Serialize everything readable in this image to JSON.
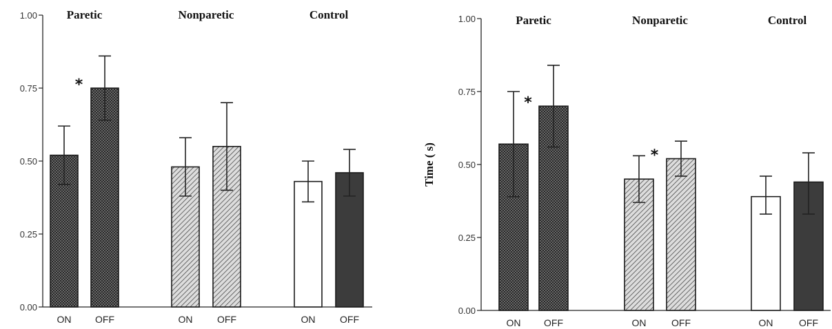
{
  "chart_data": [
    {
      "type": "bar",
      "ylabel": "",
      "ylim": [
        0,
        1.0
      ],
      "yticks": [
        "0.00",
        "0.25",
        "0.50",
        "0.75",
        "1.00"
      ],
      "groups": [
        {
          "name": "Paretic",
          "fill": "crosshatch",
          "bars": [
            {
              "label": "ON",
              "value": 0.52,
              "err_low": 0.42,
              "err_high": 0.62
            },
            {
              "label": "OFF",
              "value": 0.75,
              "err_low": 0.64,
              "err_high": 0.86
            }
          ],
          "star_between": true
        },
        {
          "name": "Nonparetic",
          "fill": "diagonal",
          "bars": [
            {
              "label": "ON",
              "value": 0.48,
              "err_low": 0.38,
              "err_high": 0.58
            },
            {
              "label": "OFF",
              "value": 0.55,
              "err_low": 0.4,
              "err_high": 0.7
            }
          ],
          "star_between": false
        },
        {
          "name": "Control",
          "fill": "plain",
          "bars": [
            {
              "label": "ON",
              "value": 0.43,
              "err_low": 0.36,
              "err_high": 0.5
            },
            {
              "label": "OFF",
              "value": 0.46,
              "err_low": 0.38,
              "err_high": 0.54
            }
          ],
          "star_between": false
        }
      ]
    },
    {
      "type": "bar",
      "ylabel": "Time ( s)",
      "ylim": [
        0,
        1.0
      ],
      "yticks": [
        "0.00",
        "0.25",
        "0.50",
        "0.75",
        "1.00"
      ],
      "groups": [
        {
          "name": "Paretic",
          "fill": "crosshatch",
          "bars": [
            {
              "label": "ON",
              "value": 0.57,
              "err_low": 0.39,
              "err_high": 0.75
            },
            {
              "label": "OFF",
              "value": 0.7,
              "err_low": 0.56,
              "err_high": 0.84
            }
          ],
          "star_between": true
        },
        {
          "name": "Nonparetic",
          "fill": "diagonal",
          "bars": [
            {
              "label": "ON",
              "value": 0.45,
              "err_low": 0.37,
              "err_high": 0.53
            },
            {
              "label": "OFF",
              "value": 0.52,
              "err_low": 0.46,
              "err_high": 0.58
            }
          ],
          "star_between": true
        },
        {
          "name": "Control",
          "fill": "plain",
          "bars": [
            {
              "label": "ON",
              "value": 0.39,
              "err_low": 0.33,
              "err_high": 0.46
            },
            {
              "label": "OFF",
              "value": 0.44,
              "err_low": 0.33,
              "err_high": 0.54
            }
          ],
          "star_between": false
        }
      ]
    }
  ],
  "colors": {
    "axis": "#222222",
    "bar_outline": "#1a1a1a",
    "crosshatch_bg": "#7a7a7a",
    "crosshatch_line": "#1c1c1c",
    "diagonal_bg": "#d9d9d9",
    "diagonal_line": "#4a4a4a",
    "control_on": "#ffffff",
    "control_off": "#3c3c3c"
  }
}
